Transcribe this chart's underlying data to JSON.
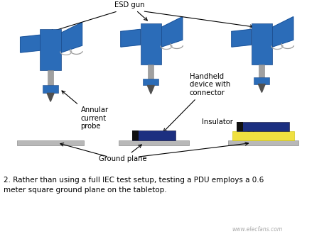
{
  "bg_color": "#ffffff",
  "blue": "#2b6cb8",
  "blue_light": "#4a8fd4",
  "gray_gp": "#b8b8b8",
  "gray_neck": "#a0a0a0",
  "dark_navy": "#1c2f80",
  "yellow": "#f0e040",
  "black_sq": "#111111",
  "caption_line1": "2. Rather than using a full IEC test setup, testing a PDU employs a 0.6",
  "caption_line2": "meter square ground plane on the tabletop.",
  "watermark": "www.elecfans.com",
  "label_esd_gun": "ESD gun",
  "label_annular": "Annular\ncurrent\nprobe",
  "label_handheld": "Handheld\ndevice with\nconnector",
  "label_insulator": "Insulator",
  "label_ground": "Ground plane"
}
